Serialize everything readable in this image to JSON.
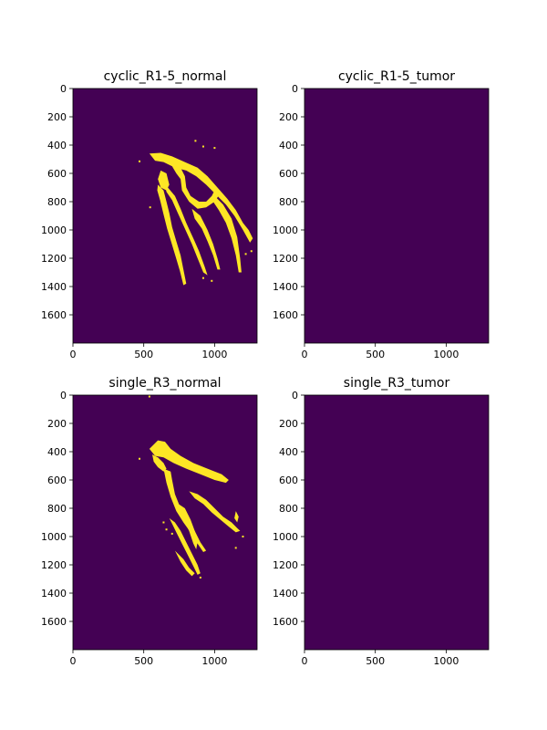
{
  "figure": {
    "background": "#ffffff",
    "colors": {
      "background_class": "#440154",
      "foreground_class": "#fde725"
    }
  },
  "chart_data": [
    {
      "type": "heatmap",
      "title": "cyclic_R1-5_normal",
      "xlabel": "",
      "ylabel": "",
      "xlim": [
        0,
        1300
      ],
      "ylim": [
        1800,
        0
      ],
      "xticks": [
        0,
        500,
        1000
      ],
      "yticks": [
        0,
        200,
        400,
        600,
        800,
        1000,
        1200,
        1400,
        1600
      ],
      "values": [
        0,
        1
      ],
      "foreground_regions": [
        {
          "path": [
            [
              540,
              460
            ],
            [
              620,
              455
            ],
            [
              700,
              480
            ],
            [
              790,
              520
            ],
            [
              880,
              560
            ],
            [
              950,
              620
            ],
            [
              1020,
              700
            ],
            [
              1090,
              780
            ],
            [
              1150,
              860
            ],
            [
              1200,
              950
            ],
            [
              1240,
              1000
            ],
            [
              1270,
              1060
            ],
            [
              1250,
              1090
            ],
            [
              1200,
              1000
            ],
            [
              1140,
              900
            ],
            [
              1080,
              820
            ],
            [
              1010,
              750
            ],
            [
              940,
              680
            ],
            [
              870,
              620
            ],
            [
              800,
              580
            ],
            [
              720,
              560
            ],
            [
              640,
              520
            ],
            [
              580,
              510
            ]
          ]
        },
        {
          "path": [
            [
              700,
              550
            ],
            [
              760,
              560
            ],
            [
              790,
              620
            ],
            [
              800,
              700
            ],
            [
              830,
              760
            ],
            [
              890,
              800
            ],
            [
              940,
              800
            ],
            [
              980,
              760
            ],
            [
              1000,
              720
            ],
            [
              1040,
              740
            ],
            [
              1000,
              800
            ],
            [
              940,
              840
            ],
            [
              880,
              850
            ],
            [
              820,
              800
            ],
            [
              770,
              720
            ],
            [
              760,
              640
            ],
            [
              730,
              600
            ]
          ]
        },
        {
          "path": [
            [
              640,
              640
            ],
            [
              670,
              700
            ],
            [
              720,
              760
            ],
            [
              760,
              850
            ],
            [
              800,
              950
            ],
            [
              850,
              1060
            ],
            [
              890,
              1150
            ],
            [
              930,
              1260
            ],
            [
              950,
              1320
            ],
            [
              920,
              1300
            ],
            [
              880,
              1200
            ],
            [
              840,
              1100
            ],
            [
              790,
              990
            ],
            [
              740,
              880
            ],
            [
              700,
              790
            ],
            [
              660,
              730
            ]
          ]
        },
        {
          "path": [
            [
              1000,
              760
            ],
            [
              1060,
              820
            ],
            [
              1120,
              920
            ],
            [
              1160,
              1050
            ],
            [
              1180,
              1200
            ],
            [
              1190,
              1300
            ],
            [
              1170,
              1300
            ],
            [
              1150,
              1180
            ],
            [
              1120,
              1060
            ],
            [
              1080,
              950
            ],
            [
              1030,
              860
            ],
            [
              990,
              800
            ]
          ]
        },
        {
          "path": [
            [
              840,
              850
            ],
            [
              900,
              900
            ],
            [
              950,
              1000
            ],
            [
              990,
              1100
            ],
            [
              1020,
              1200
            ],
            [
              1040,
              1280
            ],
            [
              1020,
              1280
            ],
            [
              990,
              1180
            ],
            [
              950,
              1080
            ],
            [
              910,
              990
            ],
            [
              860,
              920
            ]
          ]
        },
        {
          "path": [
            [
              620,
              580
            ],
            [
              660,
              600
            ],
            [
              680,
              680
            ],
            [
              660,
              720
            ],
            [
              620,
              700
            ],
            [
              600,
              640
            ]
          ]
        },
        {
          "path": [
            [
              600,
              680
            ],
            [
              640,
              720
            ],
            [
              660,
              800
            ],
            [
              680,
              880
            ],
            [
              700,
              980
            ],
            [
              730,
              1080
            ],
            [
              760,
              1180
            ],
            [
              780,
              1280
            ],
            [
              800,
              1380
            ],
            [
              780,
              1390
            ],
            [
              755,
              1290
            ],
            [
              725,
              1190
            ],
            [
              695,
              1090
            ],
            [
              665,
              990
            ],
            [
              640,
              890
            ],
            [
              615,
              790
            ],
            [
              595,
              720
            ]
          ]
        }
      ],
      "foreground_specks": [
        [
          865,
          370
        ],
        [
          920,
          410
        ],
        [
          1000,
          420
        ],
        [
          470,
          515
        ],
        [
          545,
          840
        ],
        [
          920,
          1340
        ],
        [
          980,
          1360
        ],
        [
          1220,
          1170
        ],
        [
          1260,
          1150
        ]
      ]
    },
    {
      "type": "heatmap",
      "title": "cyclic_R1-5_tumor",
      "xlabel": "",
      "ylabel": "",
      "xlim": [
        0,
        1300
      ],
      "ylim": [
        1800,
        0
      ],
      "xticks": [
        0,
        500,
        1000
      ],
      "yticks": [
        0,
        200,
        400,
        600,
        800,
        1000,
        1200,
        1400,
        1600
      ],
      "values": [
        0
      ],
      "foreground_regions": [],
      "foreground_specks": []
    },
    {
      "type": "heatmap",
      "title": "single_R3_normal",
      "xlabel": "",
      "ylabel": "",
      "xlim": [
        0,
        1300
      ],
      "ylim": [
        1800,
        0
      ],
      "xticks": [
        0,
        500,
        1000
      ],
      "yticks": [
        0,
        200,
        400,
        600,
        800,
        1000,
        1200,
        1400,
        1600
      ],
      "values": [
        0,
        1
      ],
      "foreground_regions": [
        {
          "path": [
            [
              540,
              380
            ],
            [
              600,
              320
            ],
            [
              650,
              330
            ],
            [
              690,
              380
            ],
            [
              760,
              430
            ],
            [
              850,
              480
            ],
            [
              950,
              520
            ],
            [
              1050,
              560
            ],
            [
              1100,
              600
            ],
            [
              1080,
              620
            ],
            [
              1000,
              600
            ],
            [
              900,
              560
            ],
            [
              800,
              520
            ],
            [
              710,
              480
            ],
            [
              640,
              440
            ],
            [
              580,
              430
            ]
          ]
        },
        {
          "path": [
            [
              560,
              420
            ],
            [
              600,
              440
            ],
            [
              640,
              480
            ],
            [
              660,
              520
            ],
            [
              640,
              540
            ],
            [
              600,
              510
            ],
            [
              570,
              470
            ]
          ]
        },
        {
          "path": [
            [
              640,
              520
            ],
            [
              690,
              540
            ],
            [
              700,
              600
            ],
            [
              720,
              700
            ],
            [
              760,
              800
            ],
            [
              810,
              880
            ],
            [
              860,
              960
            ],
            [
              900,
              1040
            ],
            [
              940,
              1100
            ],
            [
              920,
              1110
            ],
            [
              880,
              1050
            ],
            [
              830,
              970
            ],
            [
              780,
              900
            ],
            [
              730,
              820
            ],
            [
              690,
              720
            ],
            [
              660,
              620
            ]
          ]
        },
        {
          "path": [
            [
              820,
              680
            ],
            [
              880,
              700
            ],
            [
              940,
              740
            ],
            [
              1000,
              800
            ],
            [
              1060,
              860
            ],
            [
              1120,
              900
            ],
            [
              1160,
              940
            ],
            [
              1180,
              960
            ],
            [
              1150,
              970
            ],
            [
              1100,
              930
            ],
            [
              1040,
              880
            ],
            [
              980,
              830
            ],
            [
              920,
              770
            ],
            [
              860,
              730
            ]
          ]
        },
        {
          "path": [
            [
              730,
              760
            ],
            [
              790,
              800
            ],
            [
              830,
              880
            ],
            [
              860,
              960
            ],
            [
              880,
              1040
            ],
            [
              870,
              1090
            ],
            [
              850,
              1050
            ],
            [
              820,
              960
            ],
            [
              780,
              880
            ],
            [
              740,
              810
            ]
          ]
        },
        {
          "path": [
            [
              680,
              870
            ],
            [
              720,
              900
            ],
            [
              760,
              960
            ],
            [
              800,
              1040
            ],
            [
              840,
              1120
            ],
            [
              880,
              1200
            ],
            [
              900,
              1260
            ],
            [
              880,
              1270
            ],
            [
              850,
              1210
            ],
            [
              810,
              1130
            ],
            [
              770,
              1050
            ],
            [
              730,
              970
            ],
            [
              700,
              910
            ]
          ]
        },
        {
          "path": [
            [
              720,
              1100
            ],
            [
              780,
              1160
            ],
            [
              820,
              1220
            ],
            [
              860,
              1260
            ],
            [
              840,
              1280
            ],
            [
              800,
              1240
            ],
            [
              760,
              1180
            ]
          ]
        },
        {
          "path": [
            [
              1150,
              820
            ],
            [
              1170,
              860
            ],
            [
              1160,
              900
            ],
            [
              1140,
              870
            ]
          ]
        }
      ],
      "foreground_specks": [
        [
          540,
          10
        ],
        [
          470,
          450
        ],
        [
          640,
          900
        ],
        [
          660,
          950
        ],
        [
          700,
          980
        ],
        [
          900,
          1290
        ],
        [
          1200,
          1000
        ],
        [
          1150,
          1080
        ]
      ]
    },
    {
      "type": "heatmap",
      "title": "single_R3_tumor",
      "xlabel": "",
      "ylabel": "",
      "xlim": [
        0,
        1300
      ],
      "ylim": [
        1800,
        0
      ],
      "xticks": [
        0,
        500,
        1000
      ],
      "yticks": [
        0,
        200,
        400,
        600,
        800,
        1000,
        1200,
        1400,
        1600
      ],
      "values": [
        0
      ],
      "foreground_regions": [],
      "foreground_specks": []
    }
  ]
}
